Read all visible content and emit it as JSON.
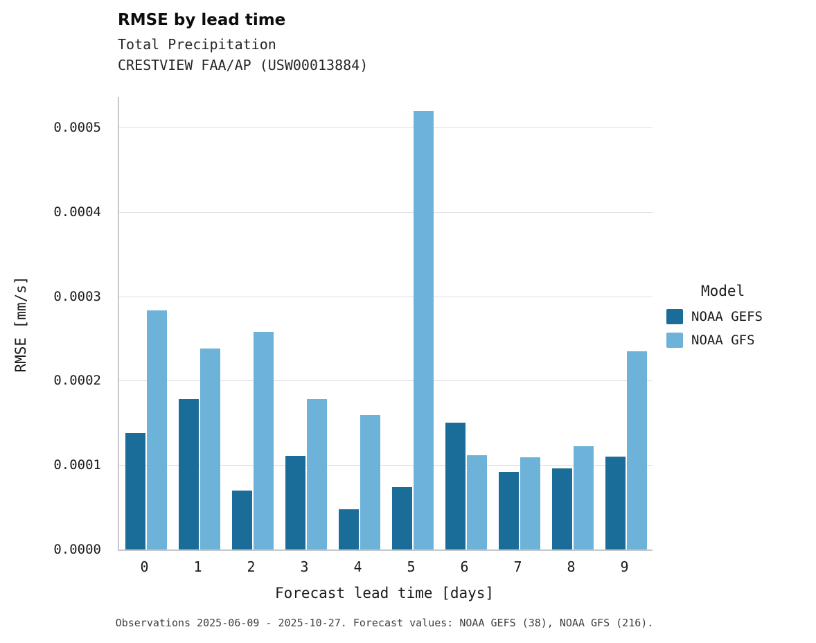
{
  "title": "RMSE by lead time",
  "subtitle_line1": "Total Precipitation",
  "subtitle_line2": "CRESTVIEW FAA/AP (USW00013884)",
  "caption": "Observations 2025-06-09 - 2025-10-27. Forecast values: NOAA GEFS (38), NOAA GFS (216).",
  "legend": {
    "title": "Model",
    "entries": [
      {
        "label": "NOAA GEFS",
        "color": "#1b6d99"
      },
      {
        "label": "NOAA GFS",
        "color": "#6db3d9"
      }
    ]
  },
  "chart_data": {
    "type": "bar",
    "title": "RMSE by lead time",
    "subtitle": "Total Precipitation — CRESTVIEW FAA/AP (USW00013884)",
    "xlabel": "Forecast lead time [days]",
    "ylabel": "RMSE [mm/s]",
    "categories": [
      "0",
      "1",
      "2",
      "3",
      "4",
      "5",
      "6",
      "7",
      "8",
      "9"
    ],
    "series": [
      {
        "name": "NOAA GEFS",
        "color": "#1b6d99",
        "values": [
          0.000138,
          0.000178,
          7e-05,
          0.000111,
          4.8e-05,
          7.4e-05,
          0.00015,
          9.2e-05,
          9.6e-05,
          0.00011
        ]
      },
      {
        "name": "NOAA GFS",
        "color": "#6db3d9",
        "values": [
          0.000283,
          0.000238,
          0.000258,
          0.000178,
          0.000159,
          0.00052,
          0.000112,
          0.000109,
          0.000122,
          0.000235
        ]
      }
    ],
    "ylim": [
      0,
      0.000536
    ],
    "yticks": [
      0.0,
      0.0001,
      0.0002,
      0.0003,
      0.0004,
      0.0005
    ],
    "ytick_labels": [
      "0.0000",
      "0.0001",
      "0.0002",
      "0.0003",
      "0.0004",
      "0.0005"
    ],
    "grid": "horizontal",
    "legend_position": "right"
  }
}
